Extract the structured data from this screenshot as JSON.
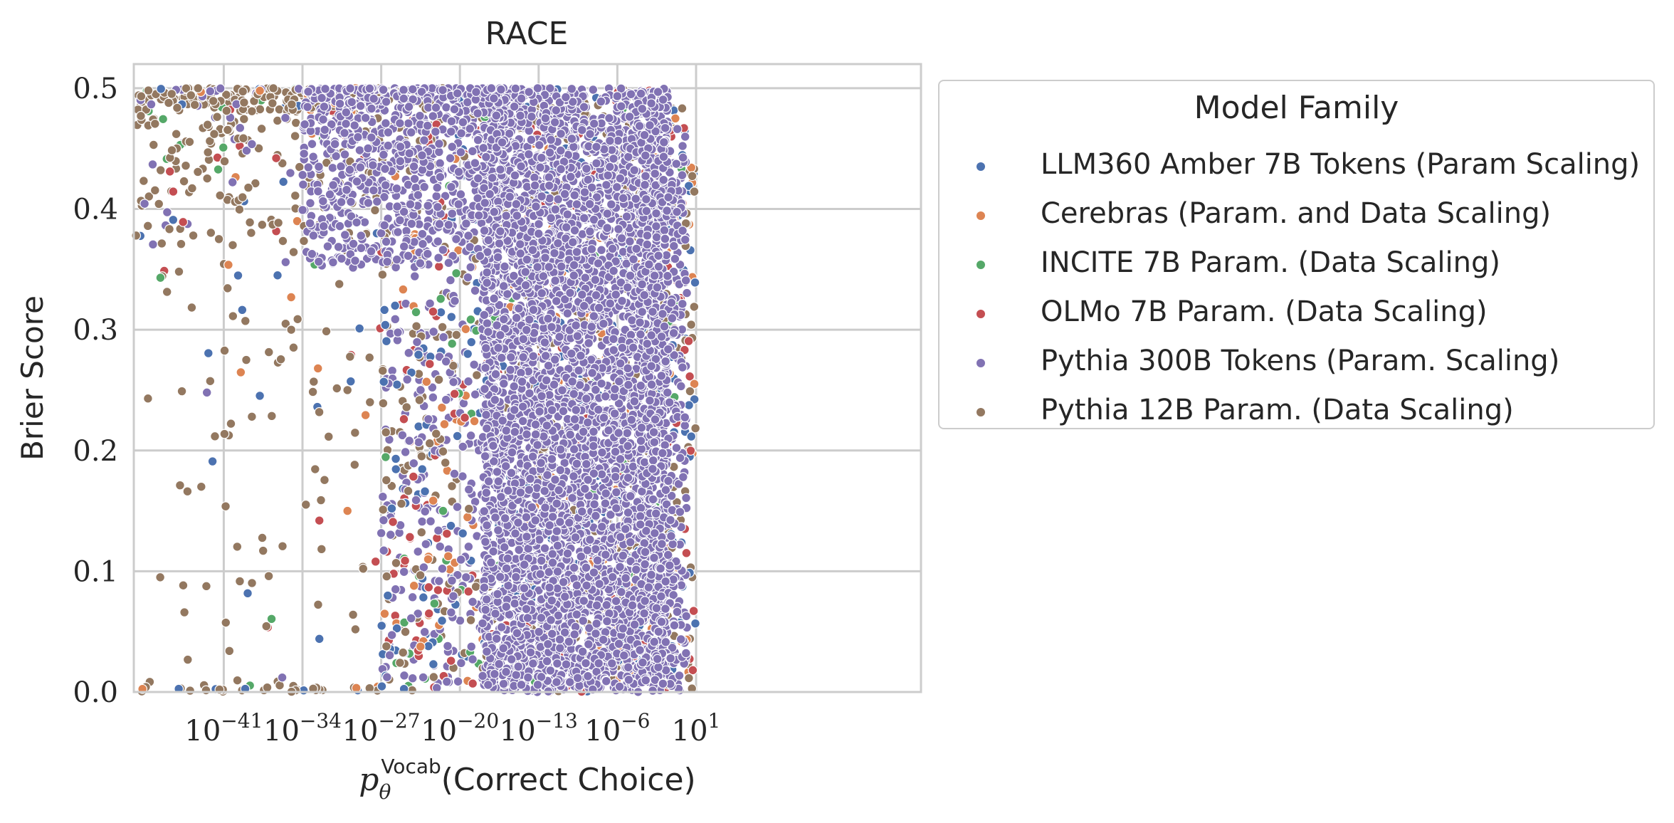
{
  "chart_data": {
    "type": "scatter",
    "title": "RACE",
    "xlabel": "p_θ^Vocab(Correct Choice)",
    "xlabel_parts": {
      "p": "p",
      "sub": "θ",
      "sup": "Vocab",
      "rest": "(Correct Choice)"
    },
    "ylabel": "Brier Score",
    "xscale": "log",
    "xlim_exponent": [
      -49,
      21
    ],
    "ylim": [
      0,
      0.52
    ],
    "x_ticks": [
      {
        "base": "10",
        "exp": "−41",
        "value_exp": -41
      },
      {
        "base": "10",
        "exp": "−34",
        "value_exp": -34
      },
      {
        "base": "10",
        "exp": "−27",
        "value_exp": -27
      },
      {
        "base": "10",
        "exp": "−20",
        "value_exp": -20
      },
      {
        "base": "10",
        "exp": "−13",
        "value_exp": -13
      },
      {
        "base": "10",
        "exp": "−6",
        "value_exp": -6
      },
      {
        "base": "10",
        "exp": "1",
        "value_exp": 1
      }
    ],
    "y_ticks": [
      {
        "label": "0.0",
        "value": 0.0
      },
      {
        "label": "0.1",
        "value": 0.1
      },
      {
        "label": "0.2",
        "value": 0.2
      },
      {
        "label": "0.3",
        "value": 0.3
      },
      {
        "label": "0.4",
        "value": 0.4
      },
      {
        "label": "0.5",
        "value": 0.5
      }
    ],
    "grid": true,
    "legend": {
      "title": "Model Family",
      "placement": "outside-right"
    },
    "series": [
      {
        "name": "LLM360 Amber 7B Tokens (Param Scaling)",
        "color": "#4c72b0"
      },
      {
        "name": "Cerebras (Param. and Data Scaling)",
        "color": "#dd8452"
      },
      {
        "name": "INCITE 7B Param. (Data Scaling)",
        "color": "#55a868"
      },
      {
        "name": "OLMo 7B Param. (Data Scaling)",
        "color": "#c44e52"
      },
      {
        "name": "Pythia 300B Tokens (Param. Scaling)",
        "color": "#8172b3"
      },
      {
        "name": "Pythia 12B Param. (Data Scaling)",
        "color": "#937860"
      }
    ],
    "point_samples": [
      {
        "series": "Pythia 12B Param. (Data Scaling)",
        "x_exp": -43.0,
        "y": 0.17
      },
      {
        "series": "Pythia 12B Param. (Data Scaling)",
        "x_exp": -39.0,
        "y": 0.275
      },
      {
        "series": "Pythia 12B Param. (Data Scaling)",
        "x_exp": -38.5,
        "y": 0.228
      },
      {
        "series": "Pythia 12B Param. (Data Scaling)",
        "x_exp": -44.5,
        "y": 0.066
      },
      {
        "series": "Pythia 12B Param. (Data Scaling)",
        "x_exp": -40.5,
        "y": 0.034
      },
      {
        "series": "Pythia 12B Param. (Data Scaling)",
        "x_exp": -48.8,
        "y": 0.378
      },
      {
        "series": "Pythia 12B Param. (Data Scaling)",
        "x_exp": -35.5,
        "y": 0.305
      },
      {
        "series": "Pythia 12B Param. (Data Scaling)",
        "x_exp": -35.0,
        "y": 0.3
      },
      {
        "series": "Pythia 12B Param. (Data Scaling)",
        "x_exp": -33.0,
        "y": 0.257
      },
      {
        "series": "Pythia 12B Param. (Data Scaling)",
        "x_exp": -37.5,
        "y": 0.117
      },
      {
        "series": "Pythia 12B Param. (Data Scaling)",
        "x_exp": -37.0,
        "y": 0.096
      },
      {
        "series": "Pythia 12B Param. (Data Scaling)",
        "x_exp": -30.0,
        "y": 0.25
      },
      {
        "series": "Pythia 12B Param. (Data Scaling)",
        "x_exp": -28.0,
        "y": 0.24
      },
      {
        "series": "Pythia 12B Param. (Data Scaling)",
        "x_exp": -29.5,
        "y": 0.064
      },
      {
        "series": "Pythia 300B Tokens (Param. Scaling)",
        "x_exp": -42.5,
        "y": 0.248
      },
      {
        "series": "Pythia 300B Tokens (Param. Scaling)",
        "x_exp": -35.5,
        "y": 0.356
      },
      {
        "series": "Pythia 300B Tokens (Param. Scaling)",
        "x_exp": -35.8,
        "y": 0.012
      },
      {
        "series": "LLM360 Amber 7B Tokens (Param Scaling)",
        "x_exp": -42.0,
        "y": 0.191
      },
      {
        "series": "LLM360 Amber 7B Tokens (Param Scaling)",
        "x_exp": -45.5,
        "y": 0.391
      },
      {
        "series": "LLM360 Amber 7B Tokens (Param Scaling)",
        "x_exp": -32.5,
        "y": 0.044
      },
      {
        "series": "OLMo 7B Param. (Data Scaling)",
        "x_exp": -32.5,
        "y": 0.142
      },
      {
        "series": "OLMo 7B Param. (Data Scaling)",
        "x_exp": -27.5,
        "y": 0.108
      },
      {
        "series": "Cerebras (Param. and Data Scaling)",
        "x_exp": -30.0,
        "y": 0.15
      },
      {
        "series": "INCITE 7B Param. (Data Scaling)",
        "x_exp": -21.5,
        "y": 0.15
      }
    ]
  }
}
